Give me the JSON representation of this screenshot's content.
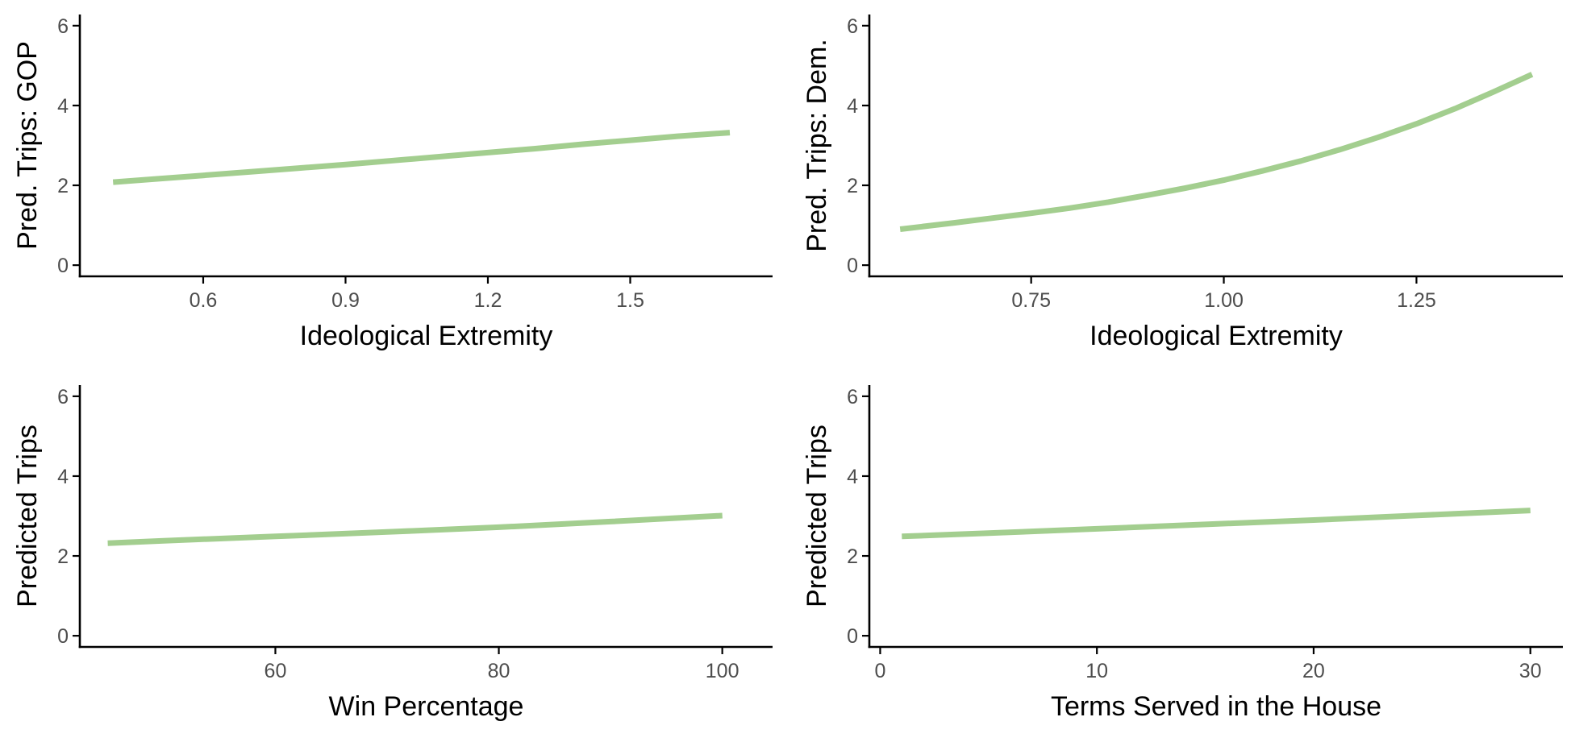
{
  "line_color": "#a3ce8f",
  "chart_data": [
    {
      "type": "line",
      "title": "",
      "xlabel": "Ideological Extremity",
      "ylabel": "Pred. Trips: GOP",
      "xlim": [
        0.34,
        1.8
      ],
      "ylim": [
        -0.28,
        6.28
      ],
      "xticks": [
        0.6,
        0.9,
        1.2,
        1.5
      ],
      "xtick_labels": [
        "0.6",
        "0.9",
        "1.2",
        "1.5"
      ],
      "yticks": [
        0,
        2,
        4,
        6
      ],
      "ytick_labels": [
        "0",
        "2",
        "4",
        "6"
      ],
      "grid": false,
      "legend": "none",
      "series": [
        {
          "x": [
            0.41,
            0.5,
            0.6,
            0.7,
            0.8,
            0.9,
            1.0,
            1.1,
            1.2,
            1.3,
            1.4,
            1.5,
            1.6,
            1.71
          ],
          "y": [
            2.08,
            2.16,
            2.25,
            2.34,
            2.43,
            2.52,
            2.62,
            2.72,
            2.82,
            2.92,
            3.03,
            3.13,
            3.23,
            3.32
          ]
        }
      ]
    },
    {
      "type": "line",
      "title": "",
      "xlabel": "Ideological Extremity",
      "ylabel": "Pred. Trips: Dem.",
      "xlim": [
        0.54,
        1.44
      ],
      "ylim": [
        -0.28,
        6.28
      ],
      "xticks": [
        0.75,
        1.0,
        1.25
      ],
      "xtick_labels": [
        "0.75",
        "1.00",
        "1.25"
      ],
      "yticks": [
        0,
        2,
        4,
        6
      ],
      "ytick_labels": [
        "0",
        "2",
        "4",
        "6"
      ],
      "grid": false,
      "legend": "none",
      "series": [
        {
          "x": [
            0.58,
            0.65,
            0.7,
            0.75,
            0.8,
            0.85,
            0.9,
            0.95,
            1.0,
            1.05,
            1.1,
            1.15,
            1.2,
            1.25,
            1.3,
            1.35,
            1.4
          ],
          "y": [
            0.9,
            1.06,
            1.18,
            1.3,
            1.43,
            1.58,
            1.75,
            1.93,
            2.13,
            2.36,
            2.61,
            2.89,
            3.2,
            3.54,
            3.92,
            4.34,
            4.78
          ]
        }
      ]
    },
    {
      "type": "line",
      "title": "",
      "xlabel": "Win Percentage",
      "ylabel": "Predicted Trips",
      "xlim": [
        42.5,
        104.5
      ],
      "ylim": [
        -0.28,
        6.28
      ],
      "xticks": [
        60,
        80,
        100
      ],
      "xtick_labels": [
        "60",
        "80",
        "100"
      ],
      "yticks": [
        0,
        2,
        4,
        6
      ],
      "ytick_labels": [
        "0",
        "2",
        "4",
        "6"
      ],
      "grid": false,
      "legend": "none",
      "series": [
        {
          "x": [
            45,
            50,
            60,
            70,
            80,
            90,
            100
          ],
          "y": [
            2.32,
            2.38,
            2.49,
            2.6,
            2.72,
            2.86,
            3.01
          ]
        }
      ]
    },
    {
      "type": "line",
      "title": "",
      "xlabel": "Terms Served in the House",
      "ylabel": "Predicted Trips",
      "xlim": [
        -0.5,
        31.5
      ],
      "ylim": [
        -0.28,
        6.28
      ],
      "xticks": [
        0,
        10,
        20,
        30
      ],
      "xtick_labels": [
        "0",
        "10",
        "20",
        "30"
      ],
      "yticks": [
        0,
        2,
        4,
        6
      ],
      "ytick_labels": [
        "0",
        "2",
        "4",
        "6"
      ],
      "grid": false,
      "legend": "none",
      "series": [
        {
          "x": [
            1,
            5,
            10,
            15,
            20,
            25,
            30
          ],
          "y": [
            2.49,
            2.57,
            2.68,
            2.79,
            2.9,
            3.02,
            3.14
          ]
        }
      ]
    }
  ]
}
